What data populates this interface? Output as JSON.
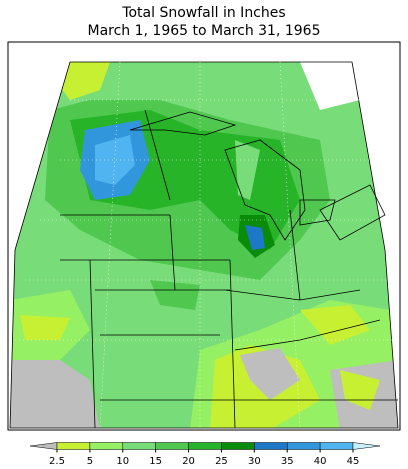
{
  "title": [
    "Total Snowfall in Inches",
    "March 1, 1965 to March 31, 1965"
  ],
  "legend": {
    "ticks": [
      2.5,
      5,
      10,
      15,
      20,
      25,
      30,
      35,
      40,
      45
    ],
    "colors": [
      "#bebebe",
      "#c8f032",
      "#96f064",
      "#78dc78",
      "#50c850",
      "#28b428",
      "#0a8c0a",
      "#1e78c8",
      "#3296dc",
      "#50b4f0",
      "#c8f0ff"
    ]
  }
}
